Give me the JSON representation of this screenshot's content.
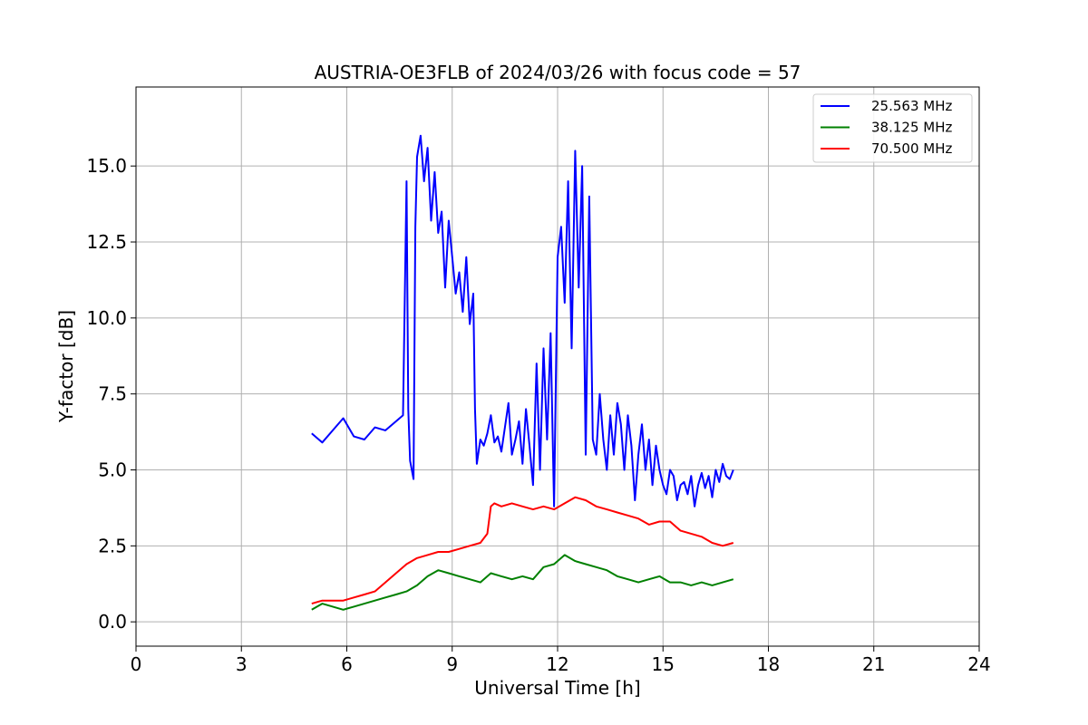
{
  "chart_data": {
    "type": "line",
    "title": "AUSTRIA-OE3FLB of 2024/03/26 with focus code = 57",
    "xlabel": "Universal Time [h]",
    "ylabel": "Y-factor [dB]",
    "xlim": [
      0,
      24
    ],
    "ylim": [
      -0.8,
      17.6
    ],
    "xticks": [
      0,
      3,
      6,
      9,
      12,
      15,
      18,
      21,
      24
    ],
    "xtick_labels": [
      "0",
      "3",
      "6",
      "9",
      "12",
      "15",
      "18",
      "21",
      "24"
    ],
    "yticks": [
      0,
      2.5,
      5,
      7.5,
      10,
      12.5,
      15
    ],
    "ytick_labels": [
      "0.0",
      "2.5",
      "5.0",
      "7.5",
      "10.0",
      "12.5",
      "15.0"
    ],
    "grid": true,
    "legend_position": "top-right",
    "series": [
      {
        "name": "25.563 MHz",
        "color": "#0000ff",
        "x": [
          5.0,
          5.3,
          5.6,
          5.9,
          6.2,
          6.5,
          6.8,
          7.1,
          7.4,
          7.6,
          7.7,
          7.75,
          7.8,
          7.9,
          7.95,
          8.0,
          8.1,
          8.2,
          8.3,
          8.4,
          8.5,
          8.6,
          8.7,
          8.8,
          8.9,
          9.0,
          9.1,
          9.2,
          9.3,
          9.4,
          9.5,
          9.6,
          9.65,
          9.7,
          9.8,
          9.9,
          10.0,
          10.1,
          10.2,
          10.3,
          10.4,
          10.5,
          10.6,
          10.7,
          10.8,
          10.9,
          11.0,
          11.1,
          11.2,
          11.3,
          11.4,
          11.5,
          11.6,
          11.7,
          11.8,
          11.9,
          12.0,
          12.1,
          12.2,
          12.3,
          12.4,
          12.5,
          12.6,
          12.7,
          12.8,
          12.9,
          13.0,
          13.1,
          13.2,
          13.3,
          13.4,
          13.5,
          13.6,
          13.7,
          13.8,
          13.9,
          14.0,
          14.1,
          14.2,
          14.3,
          14.4,
          14.5,
          14.6,
          14.7,
          14.8,
          14.9,
          15.0,
          15.1,
          15.2,
          15.3,
          15.4,
          15.5,
          15.6,
          15.7,
          15.8,
          15.9,
          16.0,
          16.1,
          16.2,
          16.3,
          16.4,
          16.5,
          16.6,
          16.7,
          16.8,
          16.9,
          17.0
        ],
        "values": [
          6.2,
          5.9,
          6.3,
          6.7,
          6.1,
          6.0,
          6.4,
          6.3,
          6.6,
          6.8,
          14.5,
          7.0,
          5.3,
          4.7,
          13.0,
          15.3,
          16.0,
          14.5,
          15.6,
          13.2,
          14.8,
          12.8,
          13.5,
          11.0,
          13.2,
          12.0,
          10.8,
          11.5,
          10.2,
          12.0,
          9.8,
          10.8,
          7.0,
          5.2,
          6.0,
          5.8,
          6.2,
          6.8,
          5.9,
          6.1,
          5.6,
          6.4,
          7.2,
          5.5,
          6.0,
          6.6,
          5.2,
          7.0,
          5.8,
          4.5,
          8.5,
          5.0,
          9.0,
          6.0,
          9.5,
          3.8,
          12.0,
          13.0,
          10.5,
          14.5,
          9.0,
          15.5,
          11.0,
          15.0,
          5.5,
          14.0,
          6.0,
          5.5,
          7.5,
          6.0,
          5.0,
          6.8,
          5.5,
          7.2,
          6.5,
          5.0,
          6.8,
          5.8,
          4.0,
          5.5,
          6.5,
          5.0,
          6.0,
          4.5,
          5.8,
          5.0,
          4.5,
          4.2,
          5.0,
          4.8,
          4.0,
          4.5,
          4.6,
          4.2,
          4.8,
          3.8,
          4.5,
          4.9,
          4.4,
          4.8,
          4.1,
          5.0,
          4.6,
          5.2,
          4.8,
          4.7,
          5.0
        ]
      },
      {
        "name": "38.125 MHz",
        "color": "#008000",
        "x": [
          5.0,
          5.3,
          5.6,
          5.9,
          6.2,
          6.5,
          6.8,
          7.1,
          7.4,
          7.7,
          8.0,
          8.3,
          8.6,
          8.9,
          9.2,
          9.5,
          9.8,
          10.1,
          10.4,
          10.7,
          11.0,
          11.3,
          11.6,
          11.9,
          12.2,
          12.5,
          12.8,
          13.1,
          13.4,
          13.7,
          14.0,
          14.3,
          14.6,
          14.9,
          15.2,
          15.5,
          15.8,
          16.1,
          16.4,
          16.7,
          17.0
        ],
        "values": [
          0.4,
          0.6,
          0.5,
          0.4,
          0.5,
          0.6,
          0.7,
          0.8,
          0.9,
          1.0,
          1.2,
          1.5,
          1.7,
          1.6,
          1.5,
          1.4,
          1.3,
          1.6,
          1.5,
          1.4,
          1.5,
          1.4,
          1.8,
          1.9,
          2.2,
          2.0,
          1.9,
          1.8,
          1.7,
          1.5,
          1.4,
          1.3,
          1.4,
          1.5,
          1.3,
          1.3,
          1.2,
          1.3,
          1.2,
          1.3,
          1.4
        ]
      },
      {
        "name": "70.500 MHz",
        "color": "#ff0000",
        "x": [
          5.0,
          5.3,
          5.6,
          5.9,
          6.2,
          6.5,
          6.8,
          7.1,
          7.4,
          7.7,
          8.0,
          8.3,
          8.6,
          8.9,
          9.2,
          9.5,
          9.8,
          10.0,
          10.1,
          10.2,
          10.4,
          10.7,
          11.0,
          11.3,
          11.6,
          11.9,
          12.2,
          12.5,
          12.8,
          13.1,
          13.4,
          13.7,
          14.0,
          14.3,
          14.6,
          14.9,
          15.2,
          15.5,
          15.8,
          16.1,
          16.4,
          16.7,
          17.0
        ],
        "values": [
          0.6,
          0.7,
          0.7,
          0.7,
          0.8,
          0.9,
          1.0,
          1.3,
          1.6,
          1.9,
          2.1,
          2.2,
          2.3,
          2.3,
          2.4,
          2.5,
          2.6,
          2.9,
          3.8,
          3.9,
          3.8,
          3.9,
          3.8,
          3.7,
          3.8,
          3.7,
          3.9,
          4.1,
          4.0,
          3.8,
          3.7,
          3.6,
          3.5,
          3.4,
          3.2,
          3.3,
          3.3,
          3.0,
          2.9,
          2.8,
          2.6,
          2.5,
          2.6
        ]
      }
    ]
  }
}
